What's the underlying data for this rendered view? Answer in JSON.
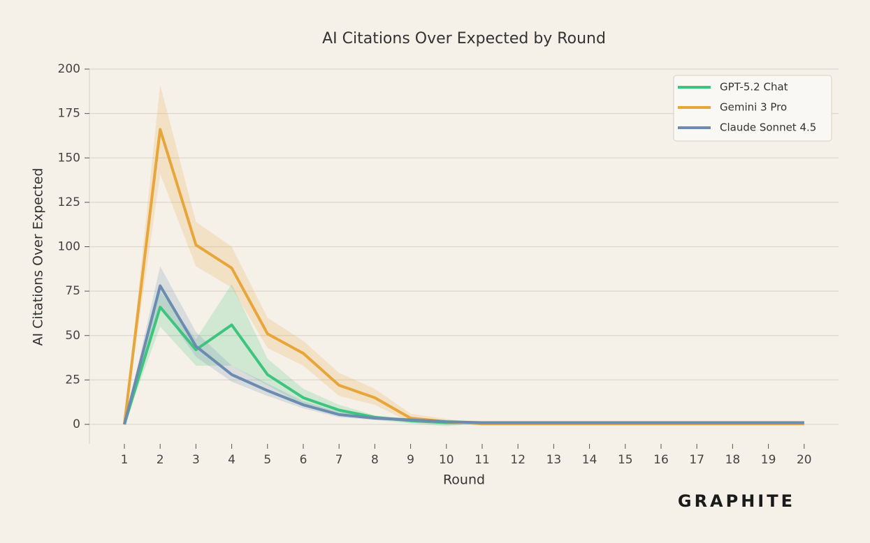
{
  "chart_data": {
    "type": "line",
    "title": "AI Citations Over Expected by Round",
    "x_label": "Round",
    "y_label": "AI Citations Over Expected",
    "branding": "GRAPHITE",
    "x": [
      1,
      2,
      3,
      4,
      5,
      6,
      7,
      8,
      9,
      10,
      11,
      12,
      13,
      14,
      15,
      16,
      17,
      18,
      19,
      20
    ],
    "xlim": [
      0,
      21
    ],
    "xticks": [
      1,
      2,
      3,
      4,
      5,
      6,
      7,
      8,
      9,
      10,
      11,
      12,
      13,
      14,
      15,
      16,
      17,
      18,
      19,
      20
    ],
    "ylim": [
      -11,
      200
    ],
    "yticks": [
      0,
      25,
      50,
      75,
      100,
      125,
      150,
      175,
      200
    ],
    "grid": true,
    "legend": "upper right",
    "series": [
      {
        "name": "GPT-5.2 Chat",
        "color": "#3dc47e",
        "values": [
          0,
          66,
          42,
          56,
          28,
          15,
          8,
          4,
          2,
          1,
          1,
          1,
          1,
          1,
          1,
          1,
          1,
          1,
          1,
          1
        ],
        "lower": [
          0,
          55,
          33,
          33,
          22,
          11,
          5,
          2.5,
          0.5,
          -1,
          0.5,
          0.5,
          0.5,
          0.5,
          0.5,
          0.5,
          0.5,
          0.5,
          0.5,
          0.5
        ],
        "upper": [
          0,
          75,
          48,
          79,
          37,
          20,
          11,
          5,
          3,
          2.5,
          1.5,
          1.5,
          1.5,
          1.5,
          1.5,
          1.5,
          1.5,
          1.5,
          1.5,
          1.5
        ]
      },
      {
        "name": "Gemini 3 Pro",
        "color": "#e8a53a",
        "values": [
          0,
          166,
          101,
          88,
          51,
          40,
          22,
          15,
          3.5,
          1.5,
          0.3,
          0.3,
          0.3,
          0.3,
          0.3,
          0.3,
          0.3,
          0.3,
          0.3,
          0.3
        ],
        "lower": [
          0,
          141,
          89,
          77,
          43,
          33,
          16,
          11,
          1,
          0,
          0,
          0,
          0,
          0,
          0,
          0,
          0,
          0,
          0,
          0
        ],
        "upper": [
          0,
          191,
          114,
          100,
          60,
          47,
          29,
          20,
          6,
          3,
          1,
          1,
          1,
          1,
          1,
          1,
          1,
          1,
          1,
          1
        ]
      },
      {
        "name": "Claude Sonnet 4.5",
        "color": "#6b8bb0",
        "values": [
          0,
          78,
          44,
          28,
          19,
          11,
          5.5,
          3.5,
          2.5,
          1.5,
          1,
          1,
          1,
          1,
          1,
          1,
          1,
          1,
          1,
          1
        ],
        "lower": [
          0,
          67,
          38,
          24,
          16,
          9,
          4,
          2.5,
          1.5,
          0.8,
          0.8,
          0.8,
          0.8,
          0.8,
          0.8,
          0.8,
          0.8,
          0.8,
          0.8,
          0.8
        ],
        "upper": [
          0,
          89,
          52,
          33,
          23,
          13,
          7,
          4.5,
          3.5,
          1.5,
          1.5,
          1.5,
          1.5,
          1.5,
          1.5,
          1.5,
          1.5,
          1.5,
          1.5,
          1.5
        ]
      }
    ]
  }
}
